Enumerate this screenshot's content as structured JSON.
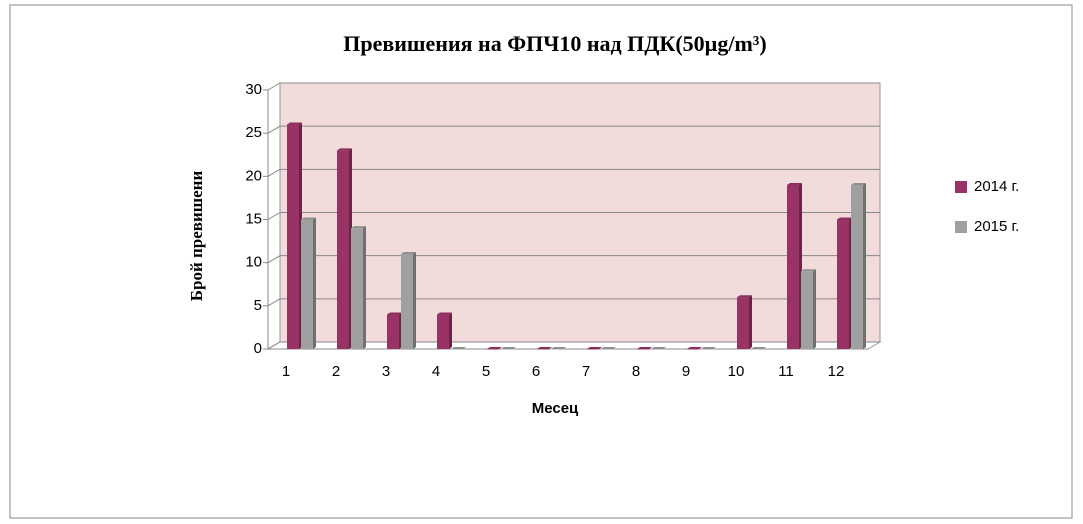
{
  "chart_data": {
    "type": "bar",
    "title": "Превишения на ФПЧ10 над ПДК(50µg/m³)",
    "y_label": "Брой превишени",
    "x_label": "Месец",
    "categories": [
      "1",
      "2",
      "3",
      "4",
      "5",
      "6",
      "7",
      "8",
      "9",
      "10",
      "11",
      "12"
    ],
    "series": [
      {
        "name": "2014 г.",
        "color": "#993366",
        "values": [
          26,
          23,
          4,
          4,
          0,
          0,
          0,
          0,
          0,
          6,
          19,
          15
        ]
      },
      {
        "name": "2015 г.",
        "color": "#a0a0a0",
        "values": [
          15,
          14,
          11,
          0,
          0,
          0,
          0,
          0,
          0,
          0,
          9,
          19
        ]
      }
    ],
    "ylim": [
      0,
      30
    ],
    "yticks": [
      0,
      5,
      10,
      15,
      20,
      25,
      30
    ],
    "grid": true,
    "legend": "right",
    "background": "#f2dcdb"
  }
}
